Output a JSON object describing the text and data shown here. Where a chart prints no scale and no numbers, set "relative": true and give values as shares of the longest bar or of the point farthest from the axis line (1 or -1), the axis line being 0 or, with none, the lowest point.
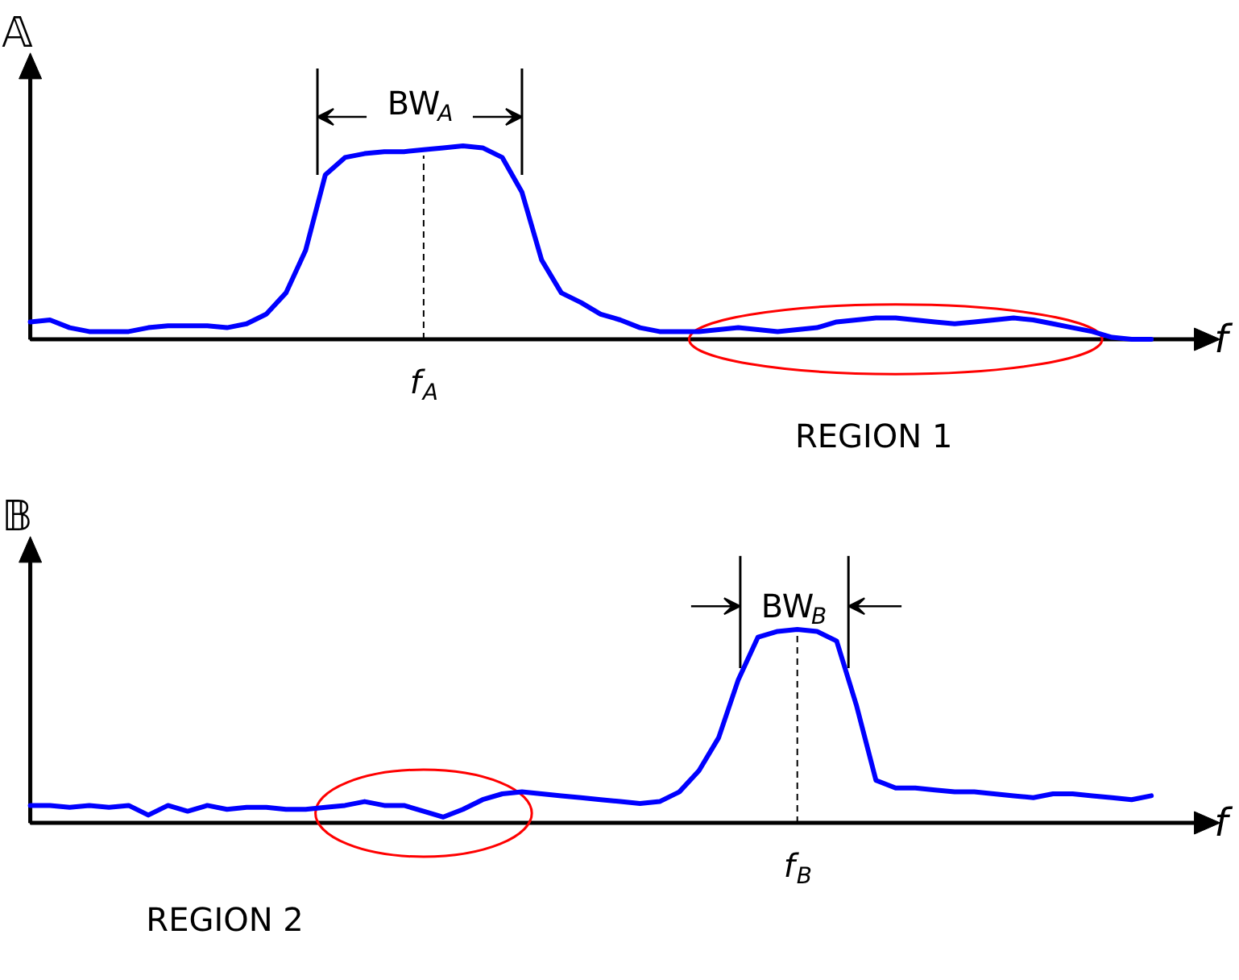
{
  "chart_data": [
    {
      "type": "line",
      "ylabel": "𝔸",
      "xlabel": "f",
      "relative": true,
      "categories": [
        null,
        null,
        null,
        null,
        null,
        null,
        null,
        null,
        null,
        null,
        null,
        null,
        null,
        null,
        null,
        null,
        null,
        null,
        null,
        null,
        null,
        null,
        null,
        null,
        null,
        null,
        null,
        null,
        null,
        null,
        null,
        null,
        null,
        null,
        null,
        null,
        null,
        null,
        null,
        null,
        null,
        null,
        null,
        null,
        null,
        null,
        null,
        null,
        null,
        null,
        null,
        null,
        null,
        null,
        null,
        null,
        null,
        null
      ],
      "series": [
        {
          "color": "#0000ff",
          "values": [
            0.09,
            0.1,
            0.06,
            0.04,
            0.04,
            0.04,
            0.06,
            0.07,
            0.07,
            0.07,
            0.06,
            0.08,
            0.13,
            0.24,
            0.46,
            0.85,
            0.94,
            0.96,
            0.97,
            0.97,
            0.98,
            0.99,
            1,
            0.99,
            0.94,
            0.76,
            0.41,
            0.24,
            0.19,
            0.13,
            0.1,
            0.06,
            0.04,
            0.04,
            0.04,
            0.05,
            0.06,
            0.05,
            0.04,
            0.05,
            0.06,
            0.09,
            0.1,
            0.11,
            0.11,
            0.1,
            0.09,
            0.08,
            0.09,
            0.1,
            0.11,
            0.1,
            0.08,
            0.06,
            0.04,
            0.01,
            0,
            0
          ]
        }
      ],
      "annotations": [
        "BW$_{A}$",
        "f$_{A}$",
        "REGION 1"
      ]
    },
    {
      "type": "line",
      "ylabel": "𝔹",
      "xlabel": "f",
      "relative": true,
      "categories": [
        null,
        null,
        null,
        null,
        null,
        null,
        null,
        null,
        null,
        null,
        null,
        null,
        null,
        null,
        null,
        null,
        null,
        null,
        null,
        null,
        null,
        null,
        null,
        null,
        null,
        null,
        null,
        null,
        null,
        null,
        null,
        null,
        null,
        null,
        null,
        null,
        null,
        null,
        null,
        null,
        null,
        null,
        null,
        null,
        null,
        null,
        null,
        null,
        null,
        null,
        null,
        null,
        null,
        null,
        null,
        null,
        null,
        null
      ],
      "series": [
        {
          "color": "#0000ff",
          "values": [
            0.09,
            0.09,
            0.08,
            0.09,
            0.08,
            0.09,
            0.04,
            0.09,
            0.06,
            0.09,
            0.07,
            0.08,
            0.08,
            0.07,
            0.07,
            0.08,
            0.09,
            0.11,
            0.09,
            0.09,
            0.06,
            0.03,
            0.07,
            0.12,
            0.15,
            0.16,
            0.15,
            0.14,
            0.13,
            0.12,
            0.11,
            0.1,
            0.11,
            0.16,
            0.27,
            0.44,
            0.74,
            0.96,
            0.99,
            1,
            0.99,
            0.94,
            0.61,
            0.22,
            0.18,
            0.18,
            0.17,
            0.16,
            0.16,
            0.15,
            0.14,
            0.13,
            0.15,
            0.15,
            0.14,
            0.13,
            0.12,
            0.14
          ]
        }
      ],
      "annotations": [
        "BW$_{B}$",
        "f$_{B}$",
        "REGION 2"
      ]
    }
  ]
}
